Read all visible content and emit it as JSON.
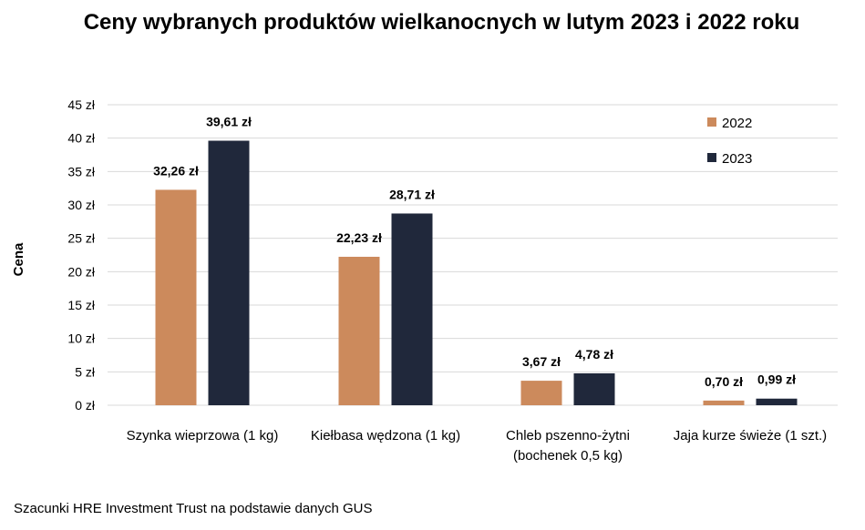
{
  "chart_data": {
    "type": "bar",
    "title": "Ceny wybranych produktów wielkanocnych w lutym 2023 i 2022 roku",
    "ylabel": "Cena",
    "xlabel": "",
    "categories": [
      [
        "Szynka wieprzowa (1 kg)"
      ],
      [
        "Kiełbasa wędzona (1 kg)"
      ],
      [
        "Chleb pszenno-żytni",
        "(bochenek 0,5 kg)"
      ],
      [
        "Jaja kurze świeże (1 szt.)"
      ]
    ],
    "series": [
      {
        "name": "2022",
        "color": "#CC8A5C",
        "values": [
          32.26,
          22.23,
          3.67,
          0.7
        ],
        "labels": [
          "32,26 zł",
          "22,23 zł",
          "3,67 zł",
          "0,70 zł"
        ]
      },
      {
        "name": "2023",
        "color": "#20283B",
        "values": [
          39.61,
          28.71,
          4.78,
          0.99
        ],
        "labels": [
          "39,61 zł",
          "28,71 zł",
          "4,78 zł",
          "0,99 zł"
        ]
      }
    ],
    "ylim": [
      0,
      45
    ],
    "yticks": [
      0,
      5,
      10,
      15,
      20,
      25,
      30,
      35,
      40,
      45
    ],
    "ytick_labels": [
      "0 zł",
      "5 zł",
      "10 zł",
      "15 zł",
      "20 zł",
      "25 zł",
      "30 zł",
      "35 zł",
      "40 zł",
      "45 zł"
    ],
    "grid": true,
    "gridline_color": "#D9D9D9",
    "legend_position": "top-right"
  },
  "source_note": "Szacunki HRE Investment Trust na podstawie danych GUS"
}
